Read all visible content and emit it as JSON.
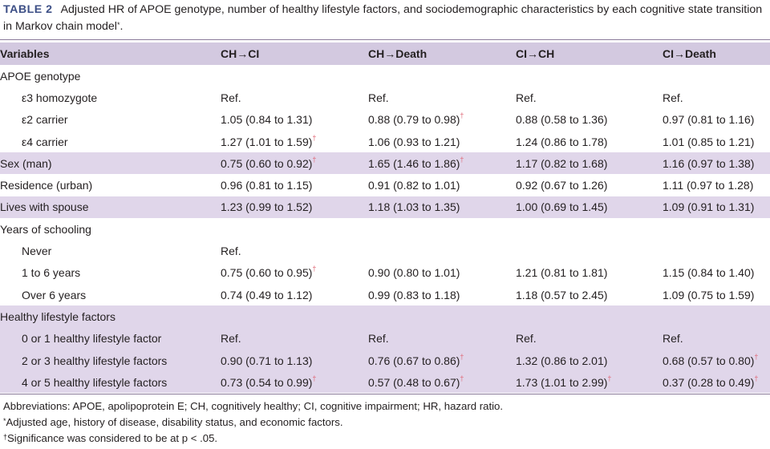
{
  "caption": {
    "label": "TABLE 2",
    "text": "Adjusted HR of APOE genotype, number of healthy lifestyle factors, and sociodemographic characteristics by each cognitive state transition in Markov chain model",
    "mark": "*",
    "end": "."
  },
  "table": {
    "headers": [
      "Variables",
      "CH→CI",
      "CH→Death",
      "CI→CH",
      "CI→Death"
    ],
    "dagger": "†",
    "rows": [
      {
        "label": "APOE genotype",
        "indent": 0,
        "shade": false,
        "cells": [
          null,
          null,
          null,
          null
        ]
      },
      {
        "label": "ε3 homozygote",
        "indent": 1,
        "shade": false,
        "cells": [
          {
            "v": "Ref."
          },
          {
            "v": "Ref."
          },
          {
            "v": "Ref."
          },
          {
            "v": "Ref."
          }
        ]
      },
      {
        "label": "ε2 carrier",
        "indent": 1,
        "shade": false,
        "cells": [
          {
            "v": "1.05 (0.84 to 1.31)"
          },
          {
            "v": "0.88 (0.79 to 0.98)",
            "sig": true
          },
          {
            "v": "0.88 (0.58 to 1.36)"
          },
          {
            "v": "0.97 (0.81 to 1.16)"
          }
        ]
      },
      {
        "label": "ε4 carrier",
        "indent": 1,
        "shade": false,
        "cells": [
          {
            "v": "1.27 (1.01 to 1.59)",
            "sig": true
          },
          {
            "v": "1.06 (0.93 to 1.21)"
          },
          {
            "v": "1.24 (0.86 to 1.78)"
          },
          {
            "v": "1.01 (0.85 to 1.21)"
          }
        ]
      },
      {
        "label": "Sex (man)",
        "indent": 0,
        "shade": true,
        "cells": [
          {
            "v": "0.75 (0.60 to 0.92)",
            "sig": true
          },
          {
            "v": "1.65 (1.46 to 1.86)",
            "sig": true
          },
          {
            "v": "1.17 (0.82 to 1.68)"
          },
          {
            "v": "1.16 (0.97 to 1.38)"
          }
        ]
      },
      {
        "label": "Residence (urban)",
        "indent": 0,
        "shade": false,
        "cells": [
          {
            "v": "0.96 (0.81 to 1.15)"
          },
          {
            "v": "0.91 (0.82 to 1.01)"
          },
          {
            "v": "0.92 (0.67 to 1.26)"
          },
          {
            "v": "1.11 (0.97 to 1.28)"
          }
        ]
      },
      {
        "label": "Lives with spouse",
        "indent": 0,
        "shade": true,
        "cells": [
          {
            "v": "1.23 (0.99 to 1.52)"
          },
          {
            "v": "1.18 (1.03 to 1.35)"
          },
          {
            "v": "1.00 (0.69 to 1.45)"
          },
          {
            "v": "1.09 (0.91 to 1.31)"
          }
        ]
      },
      {
        "label": "Years of schooling",
        "indent": 0,
        "shade": false,
        "cells": [
          null,
          null,
          null,
          null
        ]
      },
      {
        "label": "Never",
        "indent": 1,
        "shade": false,
        "cells": [
          {
            "v": "Ref."
          },
          null,
          null,
          null
        ]
      },
      {
        "label": "1 to 6 years",
        "indent": 1,
        "shade": false,
        "cells": [
          {
            "v": "0.75 (0.60 to 0.95)",
            "sig": true
          },
          {
            "v": "0.90 (0.80 to 1.01)"
          },
          {
            "v": "1.21 (0.81 to 1.81)"
          },
          {
            "v": "1.15 (0.84 to 1.40)"
          }
        ]
      },
      {
        "label": "Over 6 years",
        "indent": 1,
        "shade": false,
        "cells": [
          {
            "v": "0.74 (0.49 to 1.12)"
          },
          {
            "v": "0.99 (0.83 to 1.18)"
          },
          {
            "v": "1.18 (0.57 to 2.45)"
          },
          {
            "v": "1.09 (0.75 to 1.59)"
          }
        ]
      },
      {
        "label": "Healthy lifestyle factors",
        "indent": 0,
        "shade": true,
        "cells": [
          null,
          null,
          null,
          null
        ]
      },
      {
        "label": "0 or 1 healthy lifestyle factor",
        "indent": 1,
        "shade": true,
        "cells": [
          {
            "v": "Ref."
          },
          {
            "v": "Ref."
          },
          {
            "v": "Ref."
          },
          {
            "v": "Ref."
          }
        ]
      },
      {
        "label": "2 or 3 healthy lifestyle factors",
        "indent": 1,
        "shade": true,
        "cells": [
          {
            "v": "0.90 (0.71 to 1.13)"
          },
          {
            "v": "0.76 (0.67 to 0.86)",
            "sig": true
          },
          {
            "v": "1.32 (0.86 to 2.01)"
          },
          {
            "v": "0.68 (0.57 to 0.80)",
            "sig": true
          }
        ]
      },
      {
        "label": "4 or 5 healthy lifestyle factors",
        "indent": 1,
        "shade": true,
        "cells": [
          {
            "v": "0.73 (0.54 to 0.99)",
            "sig": true
          },
          {
            "v": "0.57 (0.48 to 0.67)",
            "sig": true
          },
          {
            "v": "1.73 (1.01 to 2.99)",
            "sig": true
          },
          {
            "v": "0.37 (0.28 to 0.49)",
            "sig": true
          }
        ]
      }
    ]
  },
  "footnotes": {
    "abbreviations": "Abbreviations: APOE, apolipoprotein E; CH, cognitively healthy; CI, cognitive impairment; HR, hazard ratio.",
    "adjusted_mark": "*",
    "adjusted_text": "Adjusted age, history of disease, disability status, and economic factors.",
    "significance_mark": "†",
    "significance_text": "Significance was considered to be at p < .05."
  }
}
